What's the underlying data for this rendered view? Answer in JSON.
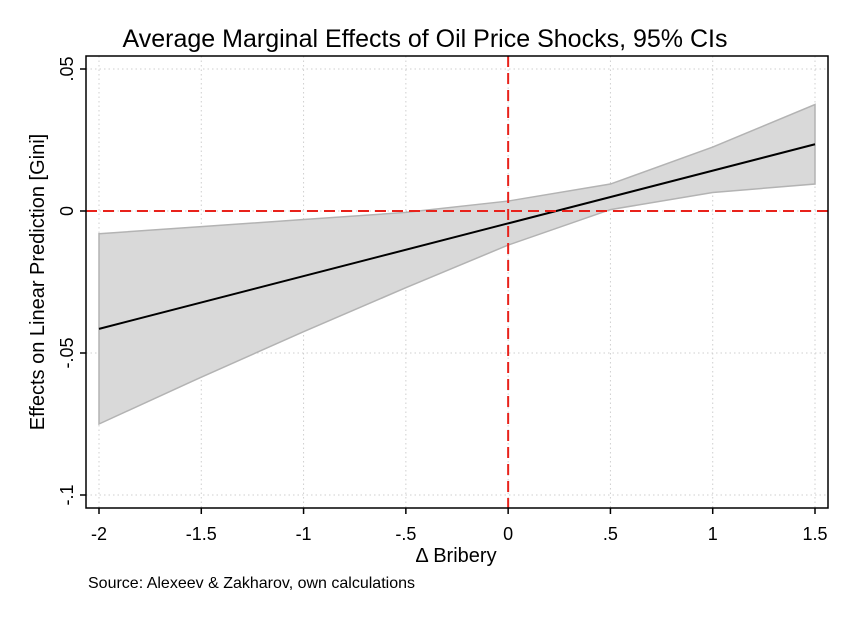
{
  "chart_data": {
    "type": "line",
    "title": "Average Marginal Effects of Oil Price Shocks, 95% CIs",
    "xlabel": "Δ Bribery",
    "ylabel": "Effects on Linear Prediction [Gini]",
    "note": "Source: Alexeev & Zakharov, own calculations",
    "xlim": [
      -2,
      1.5
    ],
    "ylim": [
      -0.1,
      0.05
    ],
    "x_ticks": [
      {
        "value": -2,
        "label": "-2"
      },
      {
        "value": -1.5,
        "label": "-1.5"
      },
      {
        "value": -1,
        "label": "-1"
      },
      {
        "value": -0.5,
        "label": "-.5"
      },
      {
        "value": 0,
        "label": "0"
      },
      {
        "value": 0.5,
        "label": ".5"
      },
      {
        "value": 1,
        "label": "1"
      },
      {
        "value": 1.5,
        "label": "1.5"
      }
    ],
    "y_ticks": [
      {
        "value": 0.05,
        "label": ".05"
      },
      {
        "value": 0,
        "label": "0"
      },
      {
        "value": -0.05,
        "label": "-.05"
      },
      {
        "value": -0.1,
        "label": "-.1"
      }
    ],
    "grid": true,
    "series": [
      {
        "kind": "estimate",
        "x": [
          -2,
          1.5
        ],
        "y": [
          -0.0415,
          0.0235
        ]
      },
      {
        "kind": "ci_band",
        "x": [
          -2,
          -1.5,
          -1,
          -0.5,
          0,
          0.5,
          1,
          1.5
        ],
        "lower": [
          -0.075,
          -0.0585,
          -0.0425,
          -0.027,
          -0.012,
          0.0005,
          0.0065,
          0.0095
        ],
        "upper": [
          -0.008,
          -0.0055,
          -0.003,
          -0.0005,
          0.0035,
          0.0095,
          0.0225,
          0.0375
        ]
      }
    ],
    "reference_lines": [
      {
        "axis": "x",
        "value": 0,
        "color": "#e8221b",
        "style": "dashed"
      },
      {
        "axis": "y",
        "value": 0,
        "color": "#e8221b",
        "style": "dashed"
      }
    ],
    "colors": {
      "estimate": "#000000",
      "band_fill": "#d9d9d9",
      "band_edge": "#b3b3b3",
      "grid": "#cfcfcf",
      "reference": "#e8221b"
    }
  }
}
